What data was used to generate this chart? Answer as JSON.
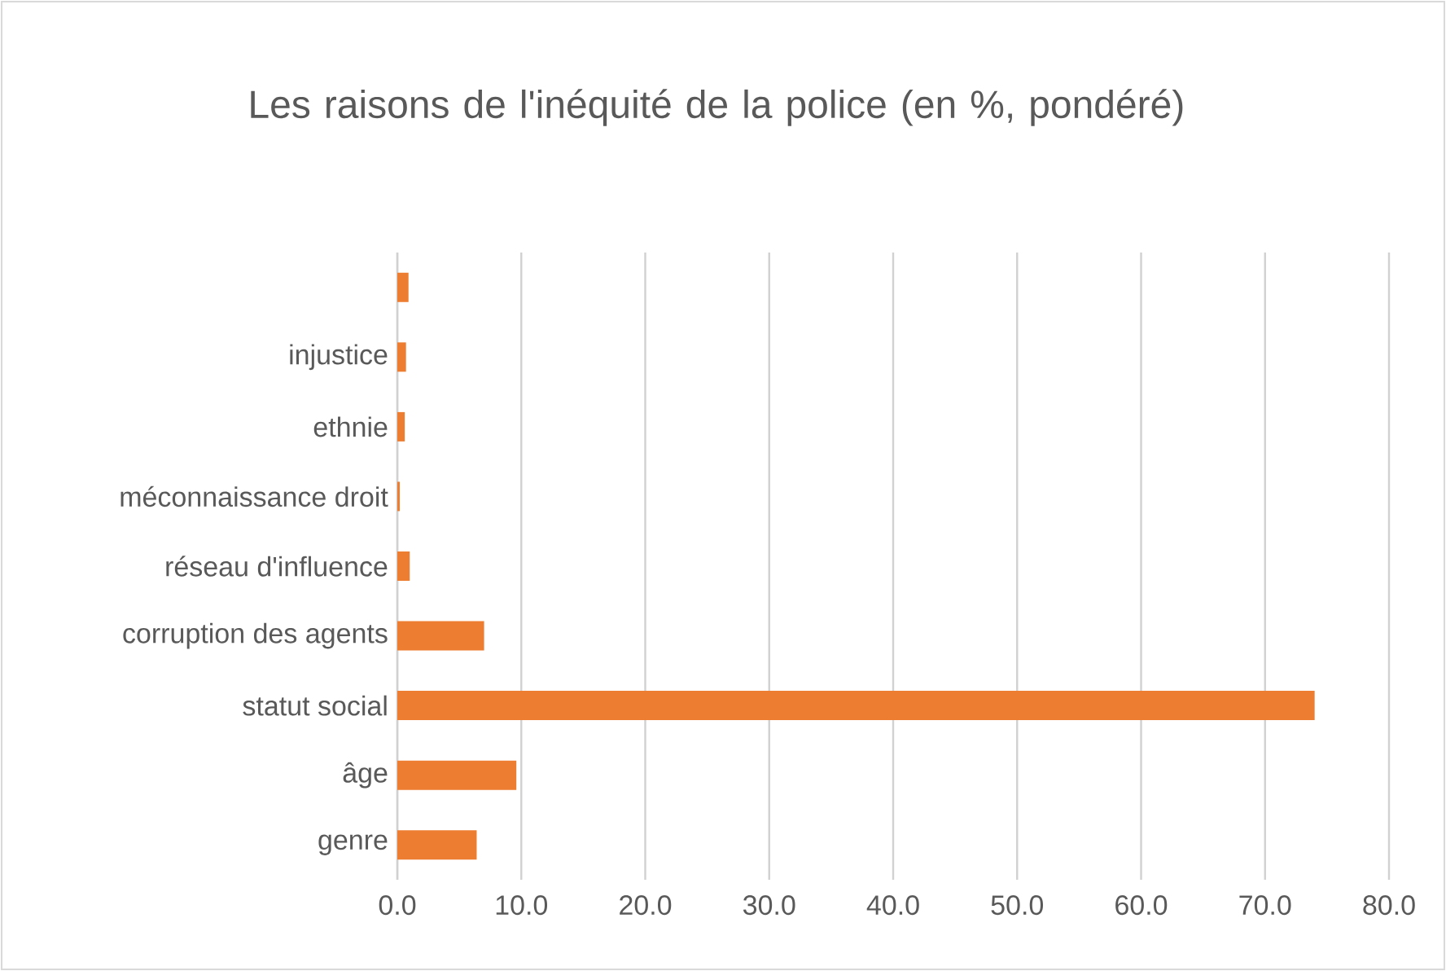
{
  "chart_data": {
    "type": "bar",
    "orientation": "horizontal",
    "title": "Les raisons de l'inéquité de la police (en %, pondéré)",
    "categories": [
      null,
      "injustice",
      "ethnie",
      "méconnaissance droit",
      "réseau d'influence",
      "corruption des agents",
      "statut social",
      "âge",
      "genre"
    ],
    "values": [
      0.9,
      0.7,
      0.6,
      0.2,
      1.0,
      7.0,
      74.0,
      9.6,
      6.4
    ],
    "color": "#ed7d31",
    "xlim": [
      0,
      80
    ],
    "xticks": [
      {
        "value": 0,
        "label": "0.0"
      },
      {
        "value": 10,
        "label": "10.0"
      },
      {
        "value": 20,
        "label": "20.0"
      },
      {
        "value": 30,
        "label": "30.0"
      },
      {
        "value": 40,
        "label": "40.0"
      },
      {
        "value": 50,
        "label": "50.0"
      },
      {
        "value": 60,
        "label": "60.0"
      },
      {
        "value": 70,
        "label": "70.0"
      },
      {
        "value": 80,
        "label": "80.0"
      }
    ],
    "grid": "x"
  }
}
